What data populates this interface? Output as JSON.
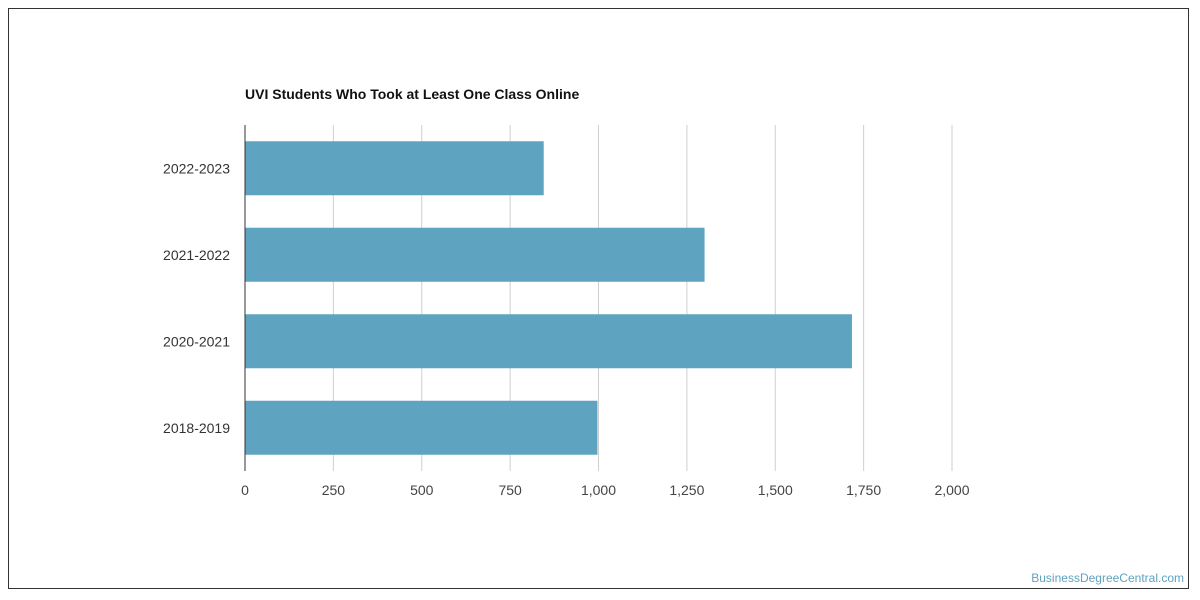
{
  "chart_data": {
    "type": "bar",
    "orientation": "horizontal",
    "title": "UVI Students Who Took at Least One Class Online",
    "categories": [
      "2022-2023",
      "2021-2022",
      "2020-2021",
      "2018-2019"
    ],
    "values": [
      845,
      1300,
      1717,
      997
    ],
    "xlim": [
      0,
      2000
    ],
    "xticks": [
      0,
      250,
      500,
      750,
      1000,
      1250,
      1500,
      1750,
      2000
    ],
    "xtick_labels": [
      "0",
      "250",
      "500",
      "750",
      "1,000",
      "1,250",
      "1,500",
      "1,750",
      "2,000"
    ],
    "bar_color": "#5ea3bf",
    "grid": "vertical",
    "legend": "none"
  },
  "watermark": {
    "text": "BusinessDegreeCentral.com",
    "color": "#5ea3bf"
  }
}
